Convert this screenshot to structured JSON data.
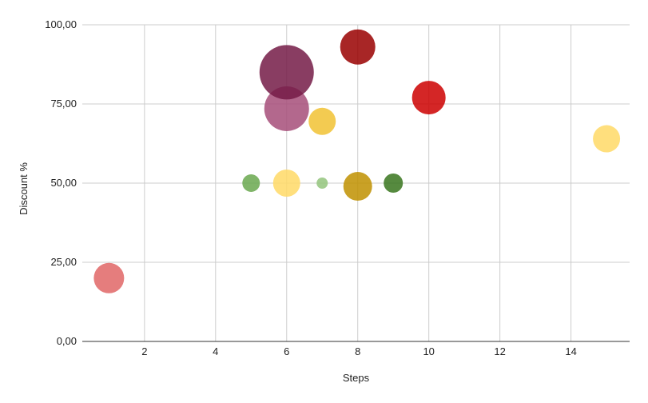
{
  "chart_data": {
    "type": "scatter",
    "title": "",
    "xlabel": "Steps",
    "ylabel": "Discount %",
    "xlim": [
      0.25,
      15.65
    ],
    "ylim": [
      0,
      100
    ],
    "x_ticks": [
      2,
      4,
      6,
      8,
      10,
      12,
      14
    ],
    "x_tick_labels": [
      "2",
      "4",
      "6",
      "8",
      "10",
      "12",
      "14"
    ],
    "y_ticks": [
      0,
      25,
      50,
      75,
      100
    ],
    "y_tick_labels": [
      "0,00",
      "25,00",
      "50,00",
      "75,00",
      "100,00"
    ],
    "grid": true,
    "legend": "none",
    "colors": {
      "grid": "#cccccc",
      "axis": "#333333"
    },
    "points": [
      {
        "x": 1,
        "y": 20,
        "size": 19,
        "color": "#e06666"
      },
      {
        "x": 5,
        "y": 50,
        "size": 11,
        "color": "#6aa84f"
      },
      {
        "x": 6,
        "y": 50,
        "size": 17,
        "color": "#ffd966"
      },
      {
        "x": 6,
        "y": 73.5,
        "size": 28,
        "color": "#a64d79"
      },
      {
        "x": 6,
        "y": 85,
        "size": 34,
        "color": "#741b47"
      },
      {
        "x": 7,
        "y": 69.5,
        "size": 17,
        "color": "#f1c232"
      },
      {
        "x": 7,
        "y": 50,
        "size": 7,
        "color": "#93c47d"
      },
      {
        "x": 8,
        "y": 49,
        "size": 18,
        "color": "#bf9000"
      },
      {
        "x": 8,
        "y": 93,
        "size": 22,
        "color": "#990000"
      },
      {
        "x": 9,
        "y": 50,
        "size": 12,
        "color": "#38761d"
      },
      {
        "x": 10,
        "y": 77,
        "size": 21,
        "color": "#cc0000"
      },
      {
        "x": 15,
        "y": 64,
        "size": 17,
        "color": "#ffd966"
      }
    ]
  }
}
